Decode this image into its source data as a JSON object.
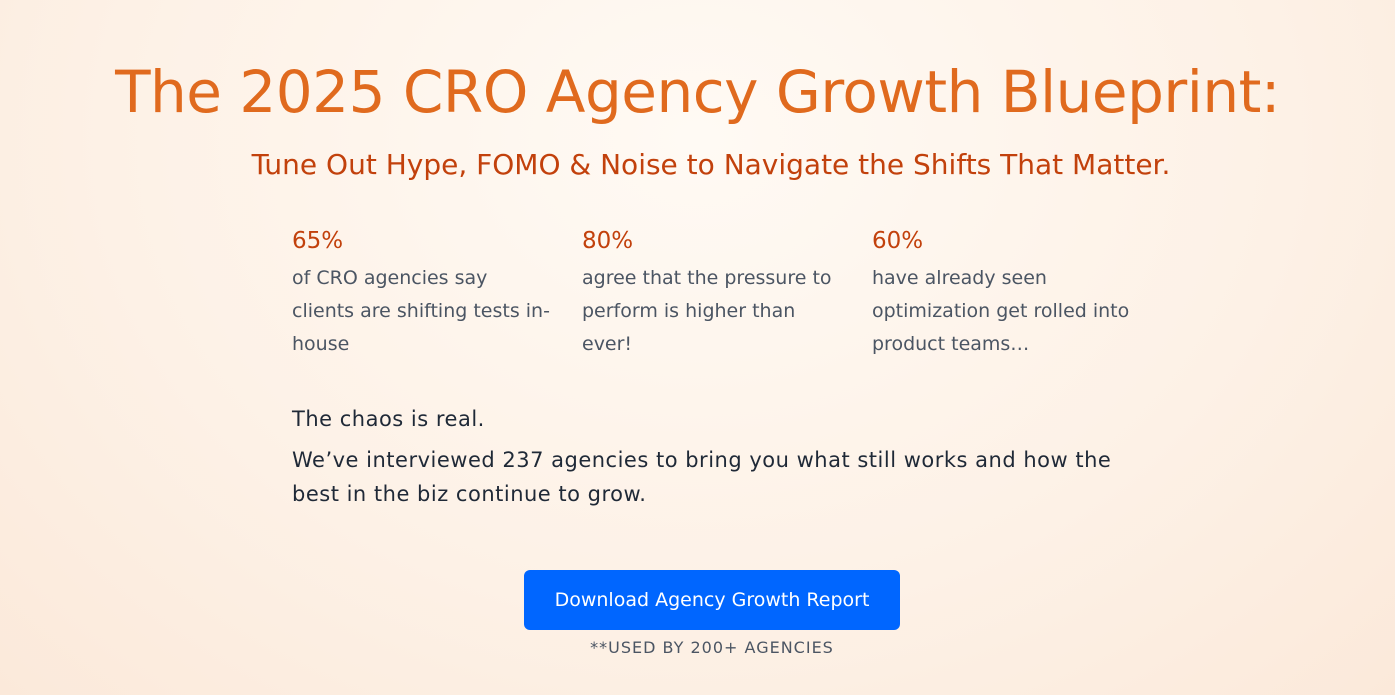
{
  "hero": {
    "title": "The 2025 CRO Agency Growth Blueprint:",
    "subtitle": "Tune Out Hype, FOMO & Noise to Navigate the Shifts That Matter.",
    "stats": [
      {
        "value": "65%",
        "text": "of CRO agencies say clients are shifting tests in-house"
      },
      {
        "value": "80%",
        "text": "agree that the pressure to perform is higher than ever!"
      },
      {
        "value": "60%",
        "text": "have already seen optimization get rolled into product teams…"
      }
    ],
    "body": [
      "The chaos is real.",
      "We’ve interviewed 237 agencies to bring you what still works and how the best in the biz continue to grow."
    ],
    "button": "Download Agency Growth Report",
    "note": "**USED BY 200+ AGENCIES"
  }
}
